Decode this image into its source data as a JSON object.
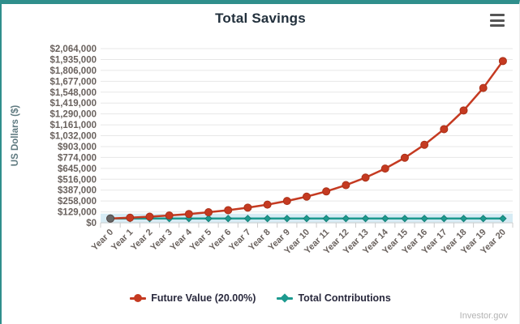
{
  "header": {
    "title": "Total Savings"
  },
  "footer": {
    "credits": "Investor.gov"
  },
  "legend": {
    "items": [
      {
        "label": "Future Value (20.00%)",
        "marker": "circle"
      },
      {
        "label": "Total Contributions",
        "marker": "diamond"
      }
    ]
  },
  "colors": {
    "accent_teal": "#2f8f8c",
    "series_red": "#c53a21",
    "series_red_stroke": "#a93119",
    "series_teal": "#1d9a8f",
    "series_teal_stroke": "#157f76",
    "band_blue": "#cfe8f2",
    "grid": "#e7e7e7",
    "axis_line": "#d0d0d0",
    "tick": "#cccccc",
    "axis_label": "#6a625e",
    "axis_title": "#5f7a80",
    "year0_marker": "#666666",
    "year0_marker_stroke": "#4d4d4d"
  },
  "chart_data": {
    "type": "line",
    "title": "Total Savings",
    "xlabel": "",
    "ylabel": "US Dollars ($)",
    "categories": [
      "Year 0",
      "Year 1",
      "Year 2",
      "Year 3",
      "Year 4",
      "Year 5",
      "Year 6",
      "Year 7",
      "Year 8",
      "Year 9",
      "Year 10",
      "Year 11",
      "Year 12",
      "Year 13",
      "Year 14",
      "Year 15",
      "Year 16",
      "Year 17",
      "Year 18",
      "Year 19",
      "Year 20"
    ],
    "series": [
      {
        "name": "Future Value (20.00%)",
        "marker": "circle",
        "values": [
          50000,
          60000,
          72000,
          86400,
          103680,
          124416,
          149299,
          179159,
          214991,
          257989,
          309587,
          371504,
          445805,
          534966,
          641959,
          770351,
          924421,
          1109306,
          1331167,
          1597400,
          1916880
        ]
      },
      {
        "name": "Total Contributions",
        "marker": "diamond",
        "values": [
          50000,
          50000,
          50000,
          50000,
          50000,
          50000,
          50000,
          50000,
          50000,
          50000,
          50000,
          50000,
          50000,
          50000,
          50000,
          50000,
          50000,
          50000,
          50000,
          50000,
          50000
        ]
      }
    ],
    "ylim": [
      0,
      2064000
    ],
    "ytick_step": 129000,
    "ytick_labels": [
      "$0",
      "$129,000",
      "$258,000",
      "$387,000",
      "$516,000",
      "$645,000",
      "$774,000",
      "$903,000",
      "$1,032,000",
      "$1,161,000",
      "$1,290,000",
      "$1,419,000",
      "$1,548,000",
      "$1,677,000",
      "$1,806,000",
      "$1,935,000",
      "$2,064,000"
    ],
    "grid": true,
    "legend_position": "bottom"
  }
}
